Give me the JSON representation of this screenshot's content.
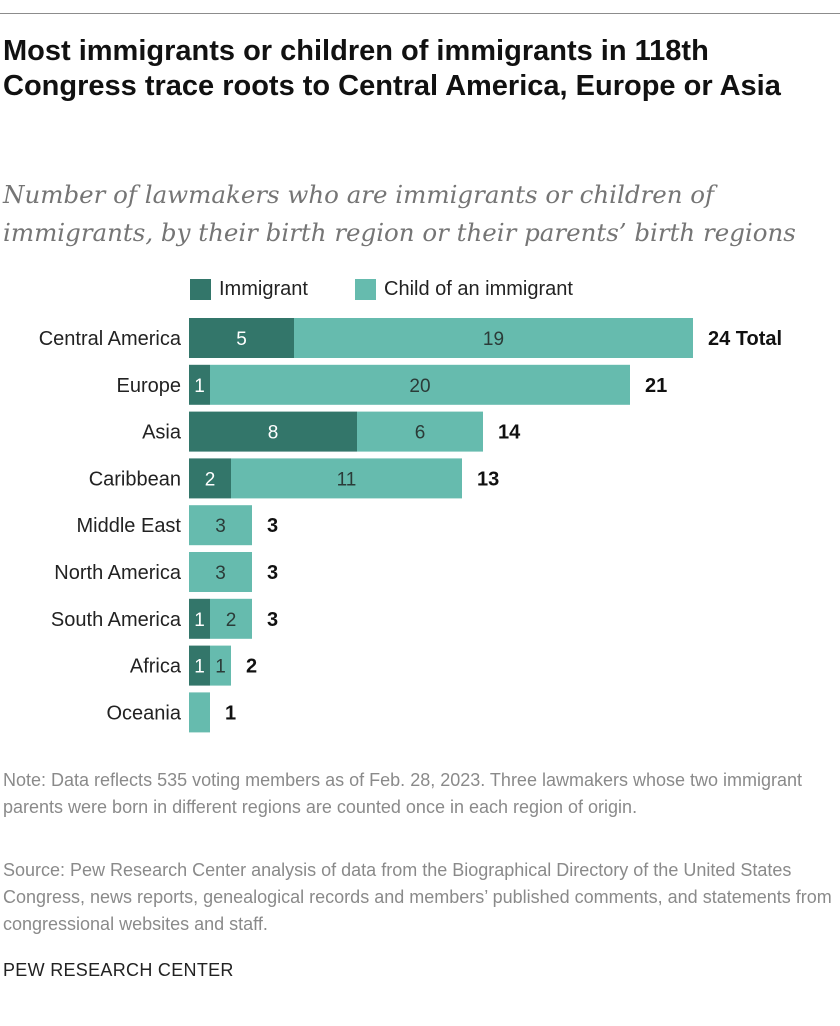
{
  "title": "Most immigrants or children of immigrants in 118th Congress trace roots to Central America, Europe or Asia",
  "subtitle": "Number of lawmakers who are immigrants or children of immigrants, by their birth region or their parents’ birth regions",
  "colors": {
    "immigrant": "#33766a",
    "child": "#66bbae",
    "immigrant_text": "#ffffff",
    "child_text": "#2b3b38"
  },
  "chart_data": {
    "type": "bar",
    "orientation": "horizontal",
    "stacked": true,
    "legend_position": "top",
    "categories": [
      "Central America",
      "Europe",
      "Asia",
      "Caribbean",
      "Middle East",
      "North America",
      "South America",
      "Africa",
      "Oceania"
    ],
    "series": [
      {
        "name": "Immigrant",
        "values": [
          5,
          1,
          8,
          2,
          0,
          0,
          1,
          1,
          0
        ]
      },
      {
        "name": "Child of an immigrant",
        "values": [
          19,
          20,
          6,
          11,
          3,
          3,
          2,
          1,
          1
        ]
      }
    ],
    "totals": [
      "24 Total",
      "21",
      "14",
      "13",
      "3",
      "3",
      "3",
      "2",
      "1"
    ],
    "xlim": [
      0,
      24
    ]
  },
  "note": "Note: Data reflects 535 voting members as of Feb. 28, 2023. Three lawmakers whose two immigrant parents were born in different regions are counted once in each region of origin.",
  "source": "Source: Pew Research Center analysis of data from the Biographical Directory of the United States Congress, news reports, genealogical records and members’ published comments, and statements from congressional websites and staff.",
  "footer": "PEW RESEARCH CENTER"
}
